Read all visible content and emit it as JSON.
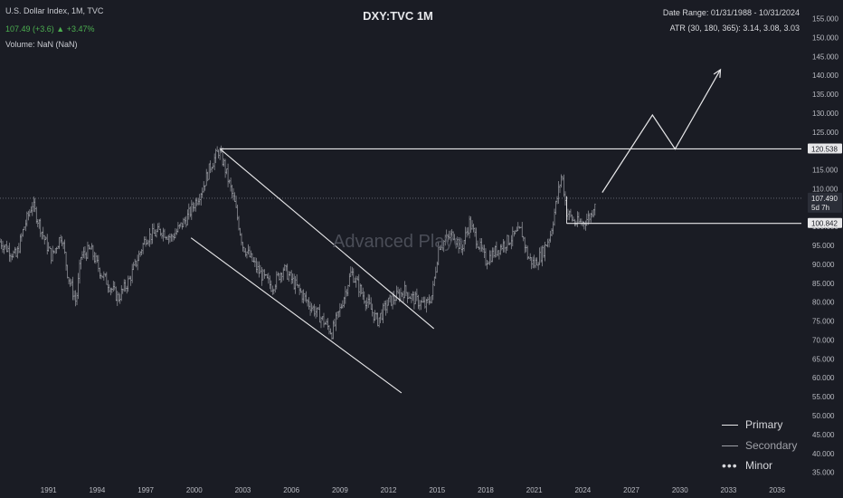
{
  "header": {
    "instrument": "U.S. Dollar Index, 1M, TVC",
    "price_change": "107.49 (+3.6) ▲ +3.47%",
    "volume": "Volume: NaN (NaN)",
    "title": "DXY:TVC 1M",
    "date_range": "Date Range: 01/31/1988 - 10/31/2024",
    "atr": "ATR (30, 180, 365): 3.14, 3.08, 3.03",
    "watermark": "Advanced Playe"
  },
  "legend": {
    "primary": "Primary",
    "secondary": "Secondary",
    "minor": "Minor"
  },
  "colors": {
    "background": "#1a1c24",
    "candles": "#9a9ca3",
    "drawings": "#e8e8ea",
    "price_change": "#4caf50",
    "axis_text": "#b9bbc2"
  },
  "chart_data": {
    "type": "line",
    "title": "DXY:TVC 1M",
    "x_tick_labels": [
      "1991",
      "1994",
      "1997",
      "2000",
      "2003",
      "2006",
      "2009",
      "2012",
      "2015",
      "2018",
      "2021",
      "2024",
      "2027",
      "2030",
      "2033",
      "2036"
    ],
    "y_tick_labels": [
      "155.000",
      "150.000",
      "145.000",
      "140.000",
      "135.000",
      "130.000",
      "125.000",
      "120.000",
      "115.000",
      "110.000",
      "105.000",
      "100.000",
      "95.000",
      "90.000",
      "85.000",
      "80.000",
      "75.000",
      "70.000",
      "65.000",
      "60.000",
      "55.000",
      "50.000",
      "45.000",
      "40.000",
      "35.000"
    ],
    "ylim": [
      33,
      158
    ],
    "xlim": [
      1988.0,
      2037.5
    ],
    "series": [
      {
        "x": [
          1988.0,
          1989.0,
          1989.5,
          1990.0,
          1990.8,
          1991.2,
          1991.8,
          1992.2,
          1992.7,
          1993.0,
          1993.6,
          1994.2,
          1995.3,
          1996.0,
          1997.0,
          1998.0,
          1998.6,
          1999.5,
          2000.5,
          2001.0,
          2001.5,
          2001.8,
          2002.5,
          2003.0,
          2004.0,
          2004.8,
          2005.5,
          2006.0,
          2007.0,
          2007.8,
          2008.5,
          2009.0,
          2009.7,
          2010.4,
          2010.8,
          2011.3,
          2012.0,
          2013.0,
          2013.5,
          2014.3,
          2014.7,
          2015.1,
          2016.0,
          2016.5,
          2017.0,
          2018.0,
          2019.0,
          2020.2,
          2020.6,
          2021.0,
          2021.5,
          2022.0,
          2022.7,
          2023.0,
          2023.5,
          2024.0,
          2024.5,
          2024.8
        ],
        "y": [
          96,
          92,
          100,
          106,
          96,
          92,
          98,
          87,
          80,
          92,
          94,
          88,
          81,
          86,
          97,
          99,
          97,
          102,
          110,
          116,
          120,
          117,
          106,
          95,
          88,
          84,
          89,
          86,
          80,
          76,
          72,
          78,
          88,
          82,
          79,
          75,
          80,
          83,
          81,
          79,
          82,
          95,
          98,
          94,
          101,
          91,
          95,
          99,
          92,
          90,
          93,
          98,
          114,
          104,
          101,
          101,
          103,
          107.49
        ]
      }
    ],
    "annotations": {
      "last_price_label": "107.490",
      "countdown": "5d 7h",
      "resistance_label": "120.538",
      "support_label": "100.842",
      "resistance_level": 120.538,
      "support_level": 100.842,
      "channel_upper": [
        [
          2001.6,
          120.5
        ],
        [
          2014.8,
          73
        ]
      ],
      "channel_lower": [
        [
          1999.8,
          97
        ],
        [
          2012.8,
          56
        ]
      ],
      "projection_path": [
        [
          2025.2,
          109
        ],
        [
          2028.3,
          129.5
        ],
        [
          2029.7,
          120.5
        ],
        [
          2032.5,
          141.5
        ]
      ]
    }
  }
}
